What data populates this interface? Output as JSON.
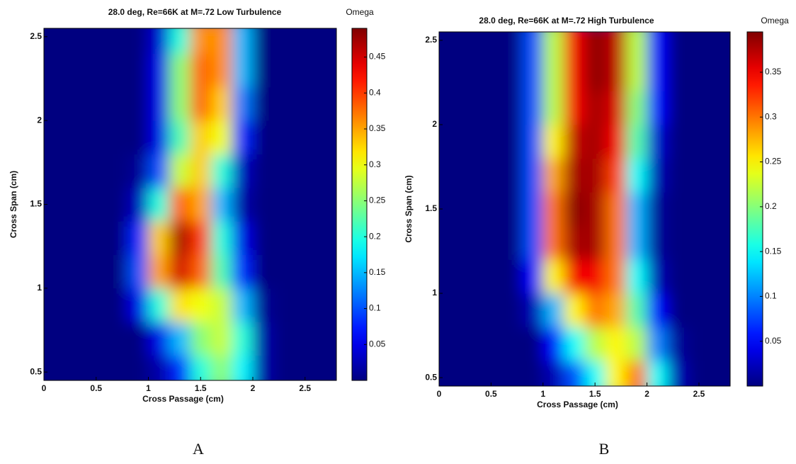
{
  "chart_data": [
    {
      "type": "contour",
      "title": "28.0 deg, Re=66K at M=.72 Low Turbulence",
      "xlabel": "Cross Passage (cm)",
      "ylabel": "Cross Span (cm)",
      "colorbar_label": "Omega",
      "panel_label": "A",
      "colormap": "jet",
      "xlim": [
        0,
        2.8
      ],
      "ylim": [
        0.45,
        2.55
      ],
      "xticks": [
        0,
        0.5,
        1,
        1.5,
        2,
        2.5
      ],
      "yticks": [
        0.5,
        1,
        1.5,
        2,
        2.5
      ],
      "zlim": [
        0,
        0.49
      ],
      "zticks": [
        0.05,
        0.1,
        0.15,
        0.2,
        0.25,
        0.3,
        0.35,
        0.4,
        0.45
      ],
      "x": [
        0.1,
        0.3,
        0.5,
        0.7,
        0.9,
        1.1,
        1.3,
        1.5,
        1.7,
        1.9,
        2.1,
        2.3,
        2.5,
        2.7
      ],
      "y": [
        0.5,
        0.7,
        0.9,
        1.1,
        1.3,
        1.5,
        1.7,
        1.9,
        2.1,
        2.3,
        2.5
      ],
      "z": [
        [
          0,
          0,
          0,
          0,
          0,
          0.02,
          0.08,
          0.2,
          0.25,
          0.18,
          0.02,
          0,
          0,
          0
        ],
        [
          0,
          0,
          0,
          0,
          0,
          0.05,
          0.15,
          0.25,
          0.28,
          0.2,
          0.02,
          0,
          0,
          0
        ],
        [
          0,
          0,
          0,
          0,
          0.05,
          0.2,
          0.32,
          0.3,
          0.28,
          0.15,
          0.01,
          0,
          0,
          0
        ],
        [
          0,
          0,
          0,
          0,
          0.1,
          0.35,
          0.45,
          0.38,
          0.22,
          0.08,
          0,
          0,
          0,
          0
        ],
        [
          0,
          0,
          0,
          0,
          0.08,
          0.33,
          0.47,
          0.4,
          0.2,
          0.05,
          0,
          0,
          0,
          0
        ],
        [
          0,
          0,
          0,
          0,
          0.03,
          0.2,
          0.38,
          0.35,
          0.15,
          0.02,
          0,
          0,
          0,
          0
        ],
        [
          0,
          0,
          0,
          0,
          0.01,
          0.1,
          0.28,
          0.33,
          0.2,
          0.03,
          0,
          0,
          0,
          0
        ],
        [
          0,
          0,
          0,
          0,
          0,
          0.05,
          0.22,
          0.33,
          0.3,
          0.08,
          0,
          0,
          0,
          0
        ],
        [
          0,
          0,
          0,
          0,
          0,
          0.05,
          0.25,
          0.38,
          0.33,
          0.12,
          0,
          0,
          0,
          0
        ],
        [
          0,
          0,
          0,
          0,
          0,
          0.05,
          0.25,
          0.38,
          0.36,
          0.15,
          0,
          0,
          0,
          0
        ],
        [
          0,
          0,
          0,
          0,
          0,
          0.04,
          0.2,
          0.36,
          0.36,
          0.15,
          0,
          0,
          0,
          0
        ]
      ]
    },
    {
      "type": "contour",
      "title": "28.0 deg, Re=66K at M=.72 High Turbulence",
      "xlabel": "Cross Passage (cm)",
      "ylabel": "Cross Span (cm)",
      "colorbar_label": "Omega",
      "panel_label": "B",
      "colormap": "jet",
      "xlim": [
        0,
        2.8
      ],
      "ylim": [
        0.45,
        2.55
      ],
      "xticks": [
        0,
        0.5,
        1,
        1.5,
        2,
        2.5
      ],
      "yticks": [
        0.5,
        1,
        1.5,
        2,
        2.5
      ],
      "zlim": [
        0,
        0.395
      ],
      "zticks": [
        0.05,
        0.1,
        0.15,
        0.2,
        0.25,
        0.3,
        0.35
      ],
      "x": [
        0.1,
        0.3,
        0.5,
        0.7,
        0.9,
        1.1,
        1.3,
        1.5,
        1.7,
        1.9,
        2.1,
        2.3,
        2.5,
        2.7
      ],
      "y": [
        0.5,
        0.7,
        0.9,
        1.1,
        1.3,
        1.5,
        1.7,
        1.9,
        2.1,
        2.3,
        2.5
      ],
      "z": [
        [
          0,
          0,
          0,
          0,
          0,
          0.02,
          0.08,
          0.15,
          0.25,
          0.3,
          0.15,
          0.02,
          0,
          0
        ],
        [
          0,
          0,
          0,
          0,
          0,
          0.05,
          0.15,
          0.22,
          0.25,
          0.22,
          0.1,
          0.01,
          0,
          0
        ],
        [
          0,
          0,
          0,
          0,
          0.02,
          0.12,
          0.25,
          0.3,
          0.28,
          0.18,
          0.05,
          0,
          0,
          0
        ],
        [
          0,
          0,
          0,
          0,
          0.05,
          0.25,
          0.35,
          0.35,
          0.3,
          0.15,
          0.02,
          0,
          0,
          0
        ],
        [
          0,
          0,
          0,
          0,
          0.08,
          0.3,
          0.38,
          0.38,
          0.3,
          0.12,
          0.01,
          0,
          0,
          0
        ],
        [
          0,
          0,
          0,
          0,
          0.08,
          0.3,
          0.39,
          0.38,
          0.3,
          0.12,
          0.01,
          0,
          0,
          0
        ],
        [
          0,
          0,
          0,
          0,
          0.08,
          0.28,
          0.38,
          0.38,
          0.32,
          0.15,
          0.02,
          0,
          0,
          0
        ],
        [
          0,
          0,
          0,
          0,
          0.08,
          0.25,
          0.37,
          0.38,
          0.35,
          0.18,
          0.03,
          0,
          0,
          0
        ],
        [
          0,
          0,
          0,
          0,
          0.08,
          0.22,
          0.35,
          0.38,
          0.36,
          0.2,
          0.05,
          0,
          0,
          0
        ],
        [
          0,
          0,
          0,
          0,
          0.08,
          0.22,
          0.35,
          0.39,
          0.37,
          0.22,
          0.05,
          0,
          0,
          0
        ],
        [
          0,
          0,
          0,
          0,
          0.08,
          0.22,
          0.35,
          0.39,
          0.37,
          0.22,
          0.05,
          0,
          0,
          0
        ]
      ]
    }
  ]
}
